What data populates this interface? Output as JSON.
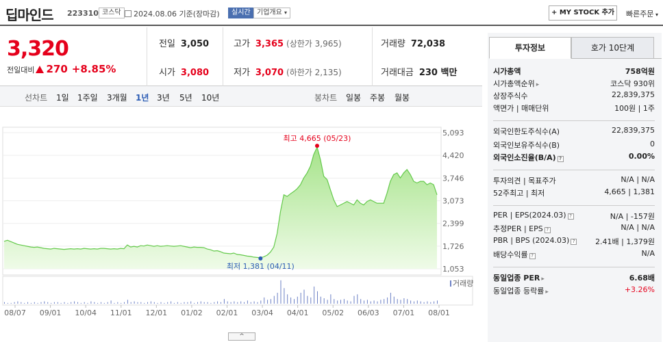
{
  "header": {
    "stock_name": "딥마인드",
    "stock_code": "223310",
    "market_badge": "코스닥",
    "date_text": "2024.08.06 기준(장마감)",
    "realtime_badge": "실시간",
    "company_info_label": "기업개요",
    "mystock_label": "+ MY STOCK 추가",
    "quick_order_label": "빠른주문"
  },
  "price": {
    "current": "3,320",
    "change_label": "전일대비",
    "change_amount": "270",
    "change_percent": "+8.85%",
    "prev_close_label": "전일",
    "prev_close": "3,050",
    "high_label": "고가",
    "high": "3,365",
    "upper_limit": "(상한가 3,965)",
    "volume_label": "거래량",
    "volume": "72,038",
    "open_label": "시가",
    "open": "3,080",
    "low_label": "저가",
    "low": "3,070",
    "lower_limit": "(하한가 2,135)",
    "amount_label": "거래대금",
    "amount": "230 백만"
  },
  "toolbar": {
    "line_chart_label": "선차트",
    "periods": [
      "1일",
      "1주일",
      "3개월",
      "1년",
      "3년",
      "5년",
      "10년"
    ],
    "active_period": "1년",
    "candle_chart_label": "봉차트",
    "candle_periods": [
      "일봉",
      "주봉",
      "월봉"
    ]
  },
  "chart_data": {
    "type": "area",
    "ylabel": "",
    "yticks": [
      "5,093",
      "4,420",
      "3,746",
      "3,073",
      "2,399",
      "1,726",
      "1,053"
    ],
    "ylim": [
      1053,
      5093
    ],
    "xticks": [
      "08/07",
      "09/01",
      "10/04",
      "11/01",
      "12/01",
      "01/02",
      "02/01",
      "03/04",
      "04/01",
      "05/02",
      "06/03",
      "07/01",
      "08/01"
    ],
    "values": [
      1870,
      1900,
      1860,
      1820,
      1780,
      1760,
      1740,
      1720,
      1700,
      1690,
      1700,
      1680,
      1660,
      1650,
      1640,
      1660,
      1650,
      1640,
      1630,
      1640,
      1650,
      1640,
      1650,
      1640,
      1660,
      1650,
      1640,
      1650,
      1640,
      1660,
      1660,
      1650,
      1640,
      1650,
      1640,
      1660,
      1650,
      1760,
      1700,
      1720,
      1700,
      1740,
      1730,
      1760,
      1740,
      1720,
      1740,
      1720,
      1730,
      1740,
      1730,
      1720,
      1730,
      1740,
      1720,
      1700,
      1680,
      1700,
      1690,
      1690,
      1680,
      1640,
      1620,
      1580,
      1590,
      1560,
      1520,
      1510,
      1500,
      1520,
      1480,
      1470,
      1450,
      1430,
      1420,
      1400,
      1390,
      1381,
      1410,
      1460,
      1550,
      1700,
      2100,
      2750,
      3250,
      3200,
      3280,
      3350,
      3430,
      3550,
      3750,
      3900,
      4100,
      4450,
      4665,
      4300,
      3800,
      3700,
      3400,
      3100,
      2900,
      2950,
      3000,
      3050,
      3000,
      2950,
      3100,
      3000,
      2950,
      3050,
      3100,
      3050,
      3000,
      3000,
      3000,
      3300,
      3650,
      3850,
      3900,
      3750,
      3900,
      4000,
      3850,
      3650,
      3600,
      3650,
      3650,
      3550,
      3600,
      3550,
      3250
    ],
    "volumes": [
      2,
      1,
      1,
      2,
      3,
      2,
      1,
      2,
      1,
      2,
      1,
      2,
      3,
      2,
      1,
      2,
      2,
      1,
      2,
      1,
      2,
      3,
      2,
      1,
      2,
      1,
      3,
      2,
      1,
      2,
      1,
      2,
      4,
      1,
      2,
      1,
      2,
      5,
      2,
      3,
      2,
      2,
      1,
      2,
      3,
      2,
      1,
      2,
      1,
      2,
      3,
      1,
      2,
      1,
      2,
      2,
      3,
      1,
      2,
      3,
      2,
      2,
      1,
      2,
      3,
      2,
      6,
      3,
      2,
      3,
      2,
      3,
      2,
      4,
      2,
      3,
      2,
      4,
      8,
      5,
      6,
      10,
      14,
      30,
      20,
      12,
      8,
      6,
      9,
      14,
      18,
      10,
      8,
      22,
      16,
      9,
      7,
      5,
      12,
      6,
      4,
      5,
      6,
      4,
      3,
      10,
      12,
      6,
      4,
      5,
      3,
      4,
      3,
      5,
      6,
      8,
      14,
      9,
      6,
      5,
      7,
      6,
      4,
      3,
      4,
      3,
      2,
      3,
      2,
      3,
      4
    ],
    "high": {
      "label": "최고",
      "value": "4,665",
      "date": "(05/23)",
      "index": 94
    },
    "low": {
      "label": "최저",
      "value": "1,381",
      "date": "(04/11)",
      "index": 77
    },
    "volume_legend": "거래량"
  },
  "invest": {
    "tab_active": "투자정보",
    "tab_other": "호가 10단계",
    "rows": [
      {
        "k": "시가총액",
        "v": "758억원",
        "bold": true
      },
      {
        "k": "시가총액순위",
        "v": "코스닥 930위",
        "arrow": true
      },
      {
        "k": "상장주식수",
        "v": "22,839,375"
      },
      {
        "k": "액면가 | 매매단위",
        "v": "100원 | 1주"
      },
      {
        "k": "외국인한도주식수(A)",
        "v": "22,839,375"
      },
      {
        "k": "외국인보유주식수(B)",
        "v": "0"
      },
      {
        "k": "외국인소진율(B/A)",
        "v": "0.00%",
        "bold": true,
        "q": true
      },
      {
        "k": "투자의견 | 목표주가",
        "v": "N/A | N/A"
      },
      {
        "k": "52주최고 | 최저",
        "v": "4,665 | 1,381"
      },
      {
        "k": "PER | EPS(2024.03)",
        "v": "N/A | -157원",
        "q": true
      },
      {
        "k": "추정PER | EPS",
        "v": "N/A | N/A",
        "q": true
      },
      {
        "k": "PBR | BPS (2024.03)",
        "v": "2.41배 | 1,379원",
        "q": true
      },
      {
        "k": "배당수익률",
        "v": "N/A",
        "q": true
      },
      {
        "k": "동일업종 PER",
        "v": "6.68배",
        "bold": true,
        "arrow": true
      },
      {
        "k": "동일업종 등락률",
        "v": "+3.26%",
        "red": true,
        "arrow": true
      }
    ]
  },
  "collapse_label": "^",
  "colors": {
    "up": "#e5001b",
    "down": "#2b5cb4",
    "area_line": "#63c94a",
    "area_fill": "#c8f0b4"
  }
}
